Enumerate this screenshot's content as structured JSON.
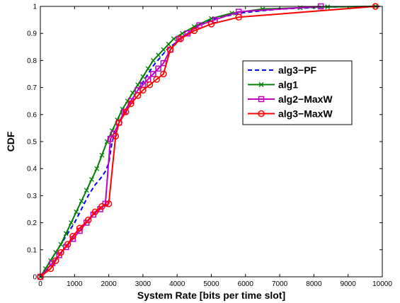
{
  "chart_data": {
    "type": "line",
    "xlabel": "System Rate [bits per time slot]",
    "ylabel": "CDF",
    "xlim": [
      0,
      10000
    ],
    "ylim": [
      0,
      1
    ],
    "xticks": [
      0,
      1000,
      2000,
      3000,
      4000,
      5000,
      6000,
      7000,
      8000,
      9000,
      10000
    ],
    "xtick_labels": [
      "0",
      "1000",
      "2000",
      "3000",
      "4000",
      "5000",
      "6000",
      "7000",
      "8000",
      "9000",
      "10000"
    ],
    "yticks": [
      0,
      0.1,
      0.2,
      0.3,
      0.4,
      0.5,
      0.6,
      0.7,
      0.8,
      0.9,
      1
    ],
    "ytick_labels": [
      "0",
      "0.1",
      "0.2",
      "0.3",
      "0.4",
      "0.5",
      "0.6",
      "0.7",
      "0.8",
      "0.9",
      "1"
    ],
    "grid": false,
    "legend_position": "upper-right",
    "series": [
      {
        "name": "alg3−PF",
        "color": "#0000ff",
        "line_style": "dashed",
        "marker": "none",
        "x": [
          0,
          200,
          400,
          600,
          800,
          1000,
          1200,
          1400,
          1600,
          1800,
          1900,
          2000,
          2100,
          2300,
          2500,
          2700,
          2900,
          3100,
          3300,
          3500,
          3700,
          3900,
          4100,
          4500,
          5000,
          5800,
          7000,
          8500,
          10000
        ],
        "y": [
          0,
          0.04,
          0.08,
          0.12,
          0.16,
          0.2,
          0.25,
          0.3,
          0.34,
          0.37,
          0.39,
          0.42,
          0.5,
          0.57,
          0.62,
          0.66,
          0.7,
          0.74,
          0.78,
          0.81,
          0.84,
          0.86,
          0.88,
          0.92,
          0.95,
          0.975,
          0.99,
          0.998,
          1.0
        ]
      },
      {
        "name": "alg1",
        "color": "#008000",
        "line_style": "solid",
        "marker": "x",
        "x": [
          0,
          150,
          300,
          450,
          600,
          750,
          900,
          1050,
          1200,
          1350,
          1500,
          1650,
          1800,
          1950,
          2100,
          2250,
          2400,
          2550,
          2700,
          2850,
          3000,
          3150,
          3300,
          3450,
          3600,
          3750,
          3900,
          4150,
          4500,
          5000,
          5600,
          6500,
          7600,
          8400,
          9800
        ],
        "y": [
          0,
          0.03,
          0.06,
          0.09,
          0.12,
          0.16,
          0.2,
          0.24,
          0.28,
          0.32,
          0.36,
          0.4,
          0.45,
          0.5,
          0.54,
          0.58,
          0.62,
          0.65,
          0.68,
          0.71,
          0.74,
          0.77,
          0.8,
          0.82,
          0.84,
          0.86,
          0.88,
          0.9,
          0.925,
          0.955,
          0.975,
          0.99,
          0.995,
          0.998,
          1.0
        ]
      },
      {
        "name": "alg2−MaxW",
        "color": "#c000c0",
        "line_style": "solid",
        "marker": "square",
        "x": [
          0,
          350,
          550,
          750,
          950,
          1150,
          1350,
          1550,
          1750,
          1900,
          2050,
          2150,
          2300,
          2450,
          2650,
          2850,
          3000,
          3150,
          3300,
          3450,
          3600,
          3800,
          4050,
          4300,
          4650,
          5100,
          5800,
          8200
        ],
        "y": [
          0,
          0.05,
          0.08,
          0.11,
          0.14,
          0.17,
          0.2,
          0.23,
          0.25,
          0.27,
          0.51,
          0.53,
          0.57,
          0.61,
          0.65,
          0.69,
          0.71,
          0.73,
          0.75,
          0.77,
          0.79,
          0.84,
          0.88,
          0.9,
          0.93,
          0.95,
          0.98,
          1.0
        ]
      },
      {
        "name": "alg3−MaxW",
        "color": "#ff0000",
        "line_style": "solid",
        "marker": "circle",
        "x": [
          0,
          300,
          450,
          600,
          800,
          950,
          1150,
          1400,
          1600,
          1800,
          2000,
          2200,
          2300,
          2500,
          2650,
          2850,
          3000,
          3200,
          3400,
          3600,
          3800,
          4100,
          4500,
          5000,
          5800,
          9800
        ],
        "y": [
          0,
          0.03,
          0.06,
          0.09,
          0.12,
          0.15,
          0.18,
          0.21,
          0.24,
          0.26,
          0.27,
          0.52,
          0.57,
          0.61,
          0.64,
          0.67,
          0.69,
          0.71,
          0.73,
          0.75,
          0.84,
          0.88,
          0.91,
          0.935,
          0.96,
          1.0
        ]
      }
    ]
  }
}
